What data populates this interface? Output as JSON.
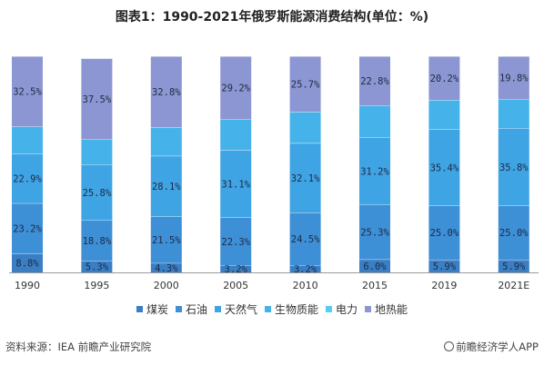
{
  "title": "图表1：1990-2021年俄罗斯能源消费结构(单位：%)",
  "source": "资料来源：IEA 前瞻产业研究院",
  "brand": "前瞻经济学人APP",
  "chart_data": {
    "type": "bar",
    "stacked": true,
    "categories": [
      "1990",
      "1995",
      "2000",
      "2005",
      "2010",
      "2015",
      "2019",
      "2021E"
    ],
    "series": [
      {
        "name": "煤炭",
        "color": "#3a7fc4",
        "values": [
          8.8,
          5.3,
          4.3,
          3.2,
          3.2,
          6.0,
          5.9,
          5.9
        ],
        "labels": [
          "8.8%",
          "5.3%",
          "4.3%",
          "3.2%",
          "3.2%",
          "6.0%",
          "5.9%",
          "5.9%"
        ]
      },
      {
        "name": "石油",
        "color": "#3d8fd6",
        "values": [
          23.2,
          18.8,
          21.5,
          22.3,
          24.5,
          25.3,
          25.0,
          25.0
        ],
        "labels": [
          "23.2%",
          "18.8%",
          "21.5%",
          "22.3%",
          "24.5%",
          "25.3%",
          "25.0%",
          "25.0%"
        ]
      },
      {
        "name": "天然气",
        "color": "#3fa4e4",
        "values": [
          22.9,
          25.8,
          28.1,
          31.1,
          32.1,
          31.2,
          35.4,
          35.8
        ],
        "labels": [
          "22.9%",
          "25.8%",
          "28.1%",
          "31.1%",
          "32.1%",
          "31.2%",
          "35.4%",
          "35.8%"
        ]
      },
      {
        "name": "生物质能",
        "color": "#45b3ea",
        "values": [
          12.6,
          11.6,
          13.3,
          14.2,
          14.5,
          14.7,
          13.5,
          13.5
        ],
        "labels": []
      },
      {
        "name": "电力",
        "color": "#55ccf4",
        "values": [
          0,
          0,
          0,
          0,
          0,
          0,
          0,
          0
        ],
        "labels": []
      },
      {
        "name": "地热能",
        "color": "#8c96d2",
        "values": [
          32.5,
          37.5,
          32.8,
          29.2,
          25.7,
          22.8,
          20.2,
          19.8
        ],
        "labels": [
          "32.5%",
          "37.5%",
          "32.8%",
          "29.2%",
          "25.7%",
          "22.8%",
          "20.2%",
          "19.8%"
        ]
      }
    ],
    "ylim": [
      0,
      100
    ],
    "legend_position": "bottom",
    "grid": false
  }
}
